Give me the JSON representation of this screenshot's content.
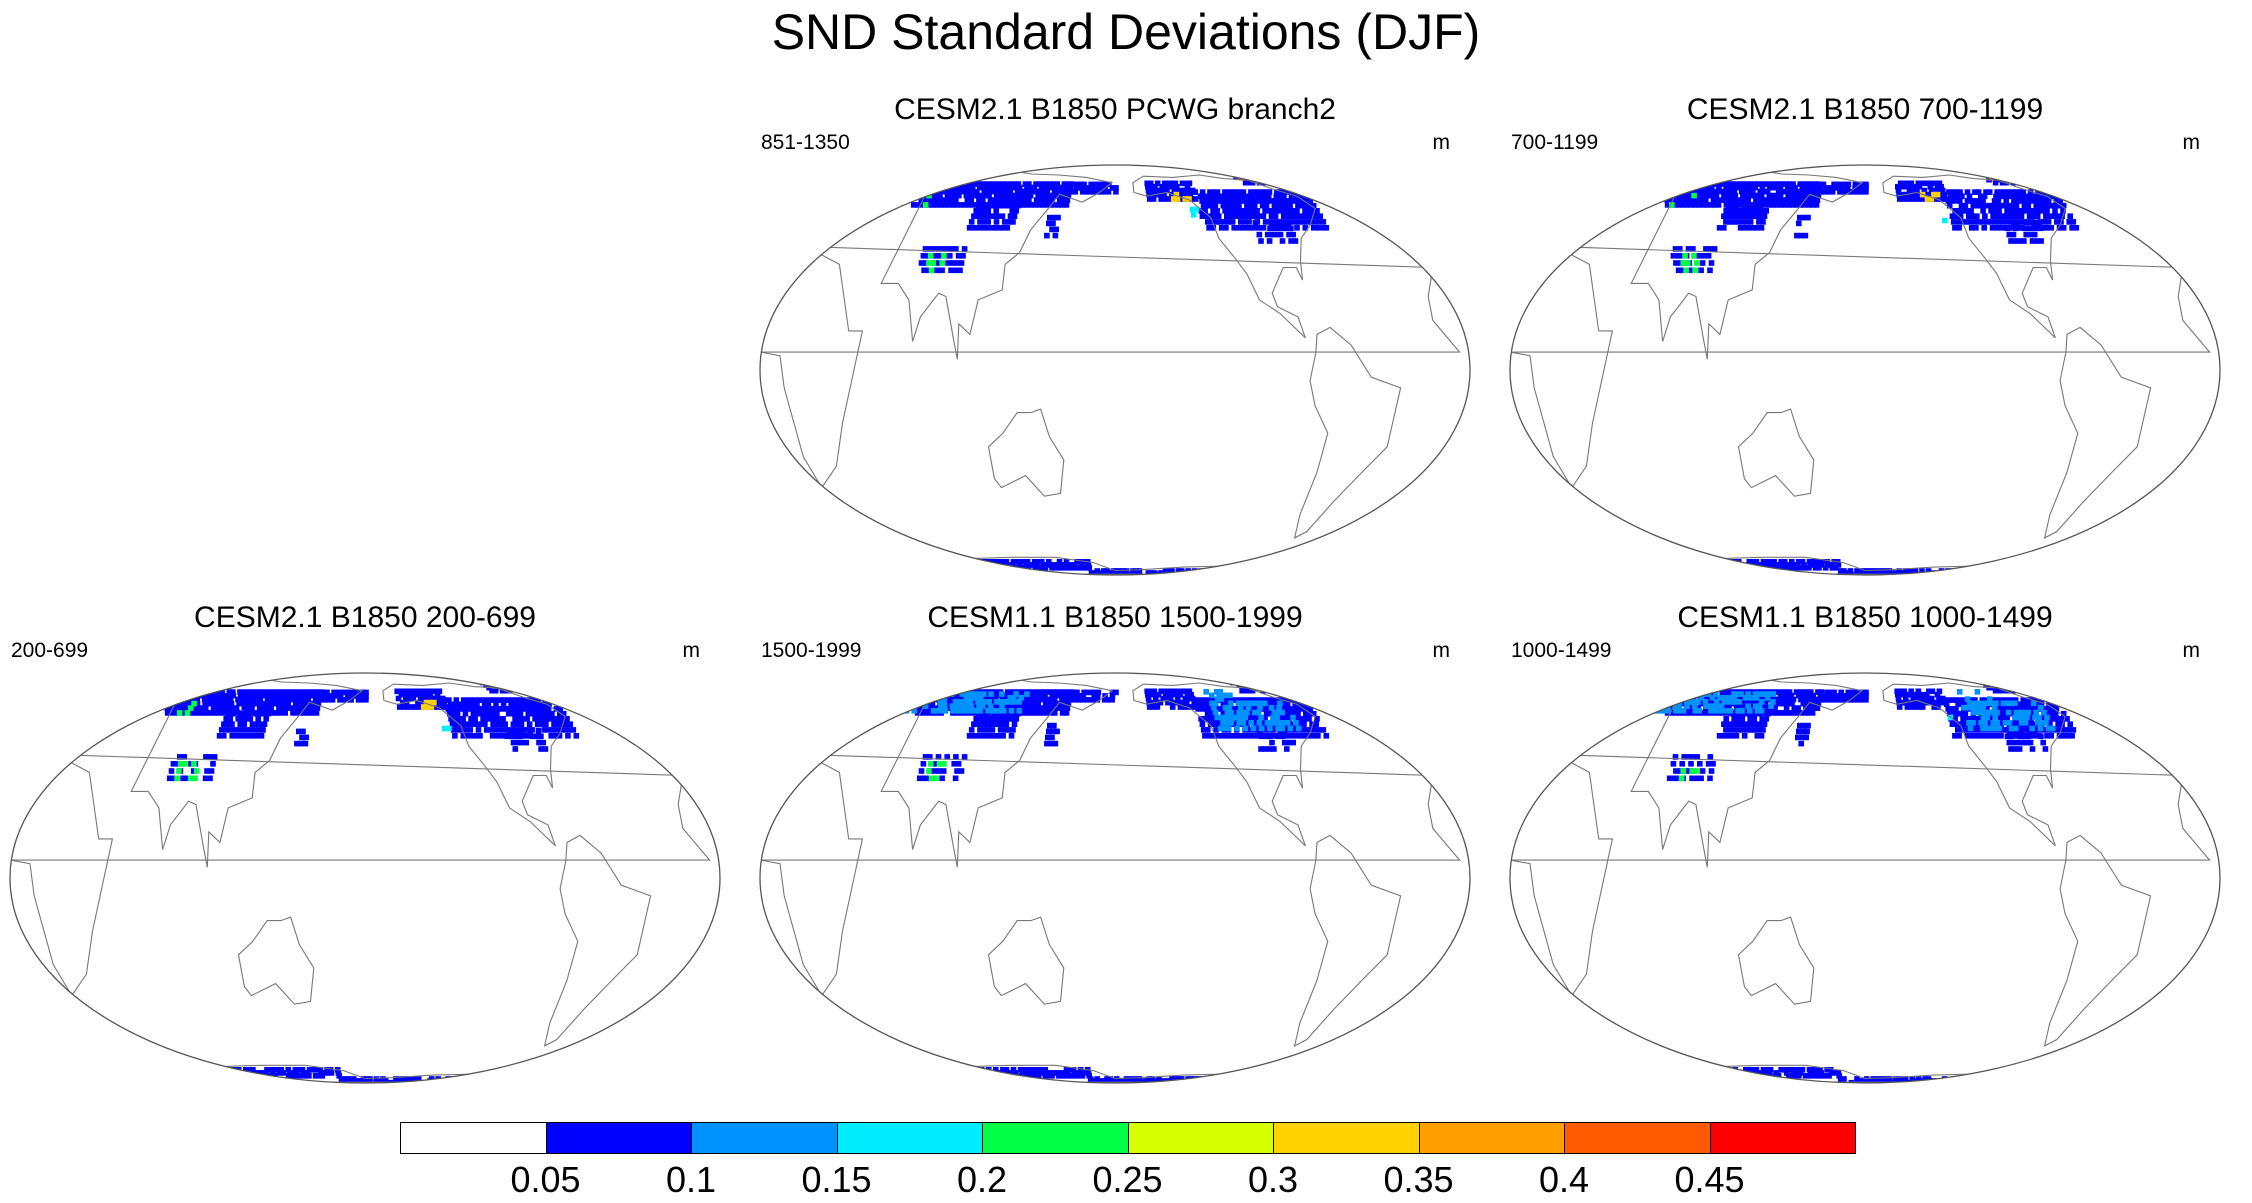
{
  "title": "SND Standard Deviations (DJF)",
  "panels": [
    {
      "title": "CESM2.1 B1850 PCWG branch2",
      "left_label": "851-1350",
      "right_label": "m",
      "model": "cesm2",
      "variant": 0
    },
    {
      "title": "CESM2.1 B1850 700-1199",
      "left_label": "700-1199",
      "right_label": "m",
      "model": "cesm2",
      "variant": 1
    },
    {
      "title": "CESM2.1 B1850 200-699",
      "left_label": "200-699",
      "right_label": "m",
      "model": "cesm2",
      "variant": 2
    },
    {
      "title": "CESM1.1 B1850 1500-1999",
      "left_label": "1500-1999",
      "right_label": "m",
      "model": "cesm1",
      "variant": 3
    },
    {
      "title": "CESM1.1 B1850 1000-1499",
      "left_label": "1000-1499",
      "right_label": "m",
      "model": "cesm1",
      "variant": 4
    }
  ],
  "colorbar": {
    "colors": [
      "#ffffff",
      "#0000ff",
      "#0093ff",
      "#00ecff",
      "#00ff45",
      "#d6ff00",
      "#ffd200",
      "#ffa000",
      "#ff5a00",
      "#ff0000"
    ],
    "labels": [
      "0.05",
      "0.1",
      "0.15",
      "0.2",
      "0.25",
      "0.3",
      "0.35",
      "0.4",
      "0.45"
    ]
  }
}
